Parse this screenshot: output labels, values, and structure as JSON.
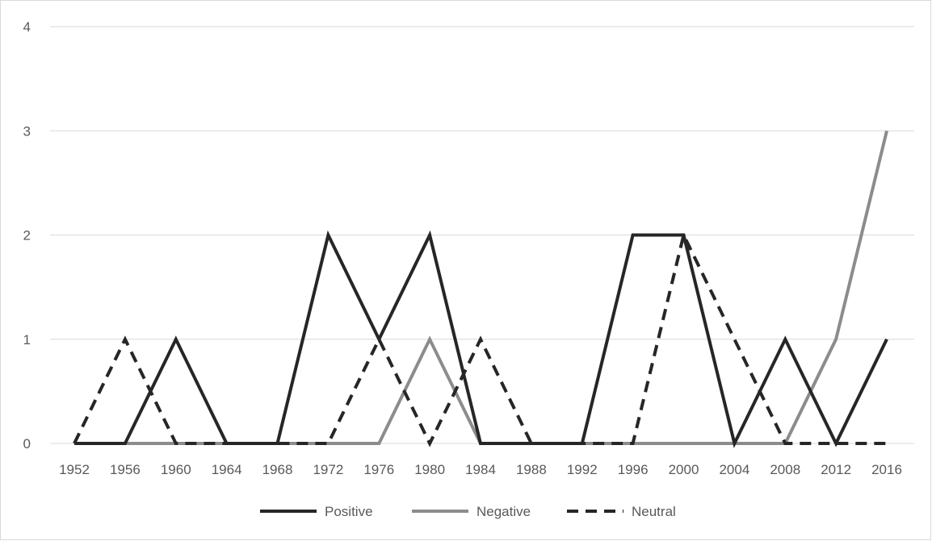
{
  "chart_data": {
    "type": "line",
    "title": "",
    "xlabel": "",
    "ylabel": "",
    "categories": [
      "1952",
      "1956",
      "1960",
      "1964",
      "1968",
      "1972",
      "1976",
      "1980",
      "1984",
      "1988",
      "1992",
      "1996",
      "2000",
      "2004",
      "2008",
      "2012",
      "2016"
    ],
    "ylim": [
      0,
      4
    ],
    "yticks": [
      "0",
      "1",
      "2",
      "3",
      "4"
    ],
    "grid": "horizontal",
    "legend_position": "bottom",
    "series": [
      {
        "name": "Positive",
        "color": "#262626",
        "dash": "solid",
        "values": [
          0,
          0,
          1,
          0,
          0,
          2,
          1,
          2,
          0,
          0,
          0,
          2,
          2,
          0,
          1,
          0,
          1
        ]
      },
      {
        "name": "Negative",
        "color": "#8c8c8c",
        "dash": "solid",
        "values": [
          0,
          0,
          0,
          0,
          0,
          0,
          0,
          1,
          0,
          0,
          0,
          0,
          0,
          0,
          0,
          1,
          3
        ]
      },
      {
        "name": "Neutral",
        "color": "#262626",
        "dash": "dashed",
        "values": [
          0,
          1,
          0,
          0,
          0,
          0,
          1,
          0,
          1,
          0,
          0,
          0,
          2,
          1,
          0,
          0,
          0
        ]
      }
    ]
  }
}
